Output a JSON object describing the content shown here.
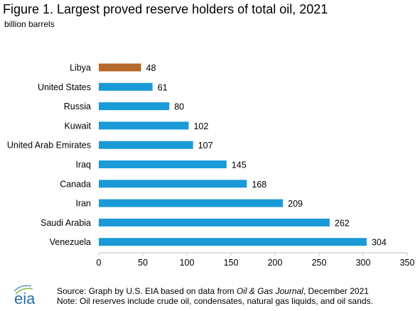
{
  "title": "Figure 1. Largest proved reserve holders of total oil, 2021",
  "unit_label": "billion barrels",
  "colors": {
    "bar": "#1a9ad7",
    "highlight": "#b5692a",
    "axis": "#bfbfbf"
  },
  "chart_data": {
    "type": "bar",
    "orientation": "horizontal",
    "categories": [
      "Libya",
      "United States",
      "Russia",
      "Kuwait",
      "United Arab Emirates",
      "Iraq",
      "Canada",
      "Iran",
      "Saudi Arabia",
      "Venezuela"
    ],
    "values": [
      48,
      61,
      80,
      102,
      107,
      145,
      168,
      209,
      262,
      304
    ],
    "data_labels": [
      "48",
      "61",
      "80",
      "102",
      "107",
      "145",
      "168",
      "209",
      "262",
      "304"
    ],
    "highlighted_category": "Libya",
    "xlim": [
      0,
      350
    ],
    "x_ticks": [
      "0",
      "50",
      "100",
      "150",
      "200",
      "250",
      "300",
      "350"
    ],
    "grid": false,
    "legend": "none"
  },
  "footer": {
    "logo_text": "eia",
    "source_prefix": "Source: Graph by U.S. EIA based on data from ",
    "source_italic": "Oil & Gas Journal",
    "source_suffix": ", December 2021",
    "note": "Note: Oil reserves include crude oil, condensates, natural gas liquids, and oil sands."
  }
}
